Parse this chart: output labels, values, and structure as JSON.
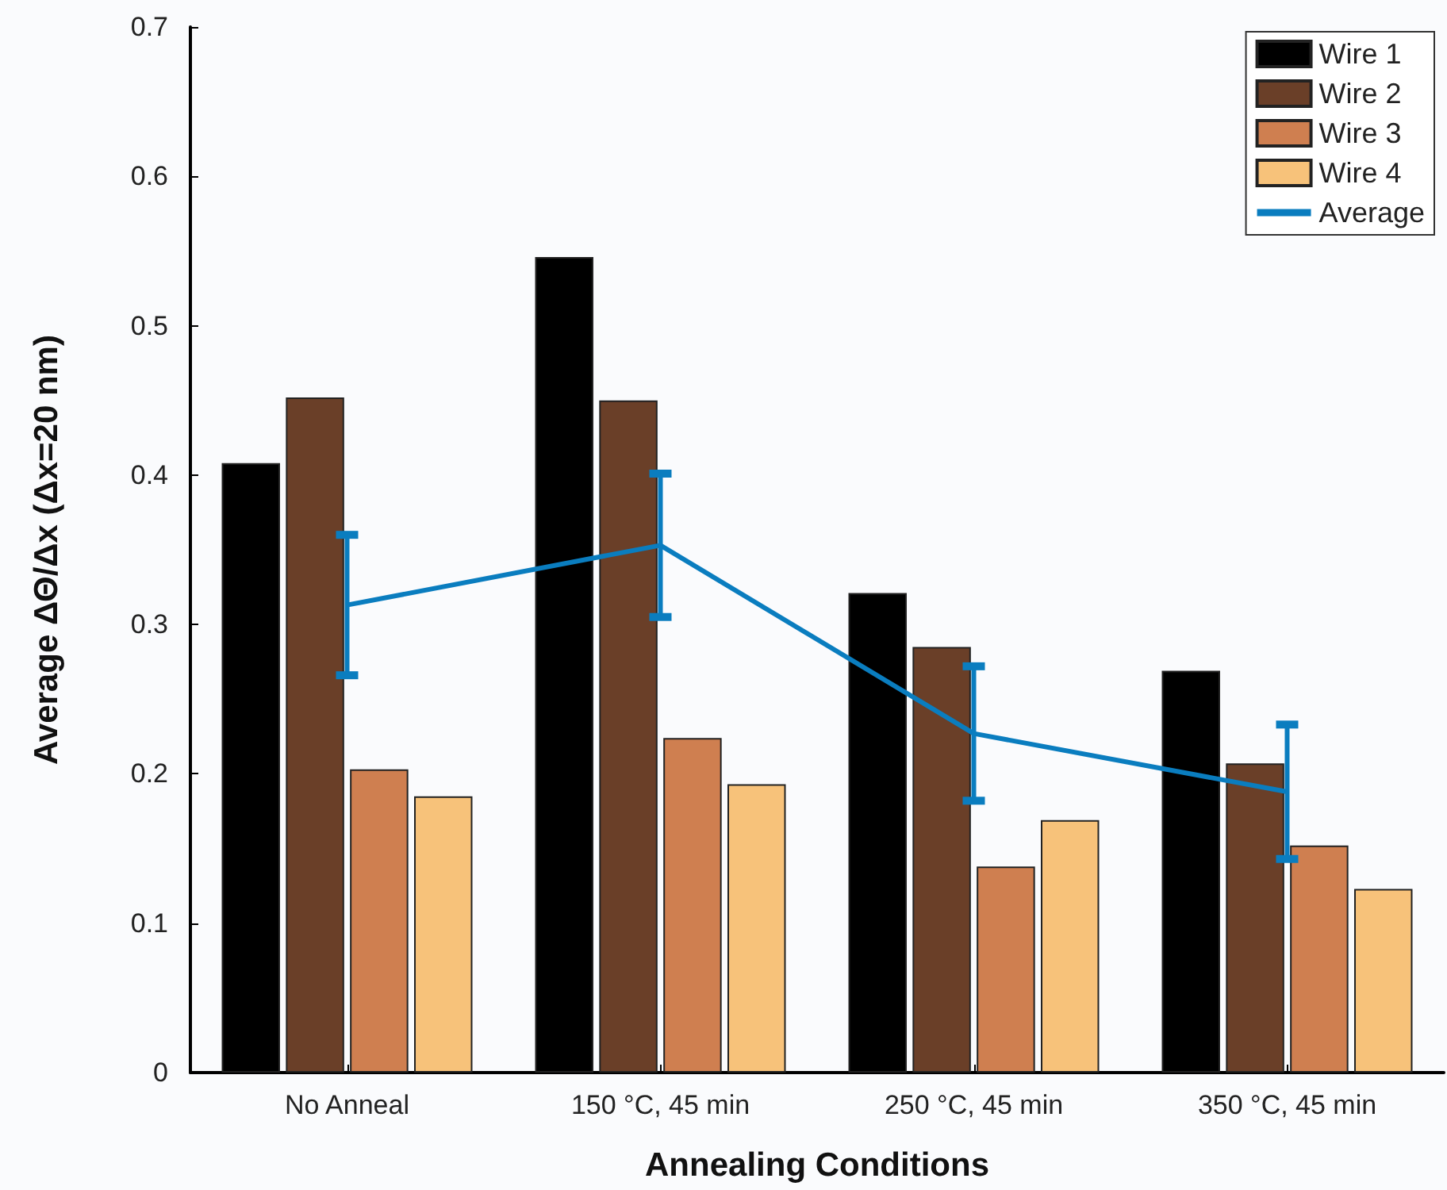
{
  "chart_data": {
    "type": "bar",
    "xlabel": "Annealing Conditions",
    "ylabel": "Average ΔΘ/Δx (Δx=20 nm)",
    "categories": [
      "No Anneal",
      "150 °C, 45 min",
      "250 °C, 45 min",
      "350 °C, 45 min"
    ],
    "series": [
      {
        "name": "Wire 1",
        "color": "#000000",
        "values": [
          0.408,
          0.546,
          0.321,
          0.269
        ]
      },
      {
        "name": "Wire 2",
        "color": "#6a3f28",
        "values": [
          0.452,
          0.45,
          0.285,
          0.207
        ]
      },
      {
        "name": "Wire 3",
        "color": "#cf7f50",
        "values": [
          0.203,
          0.224,
          0.138,
          0.152
        ]
      },
      {
        "name": "Wire 4",
        "color": "#f7c27a",
        "values": [
          0.185,
          0.193,
          0.169,
          0.123
        ]
      },
      {
        "name": "Average",
        "type": "line",
        "color": "#0a7dbf",
        "values": [
          0.313,
          0.353,
          0.227,
          0.188
        ],
        "errors": [
          0.047,
          0.048,
          0.045,
          0.045
        ]
      }
    ],
    "ylim": [
      0,
      0.7
    ],
    "yticks": [
      0,
      0.1,
      0.2,
      0.3,
      0.4,
      0.5,
      0.6,
      0.7
    ],
    "grid": false,
    "legend": "top right",
    "marker": "none"
  }
}
